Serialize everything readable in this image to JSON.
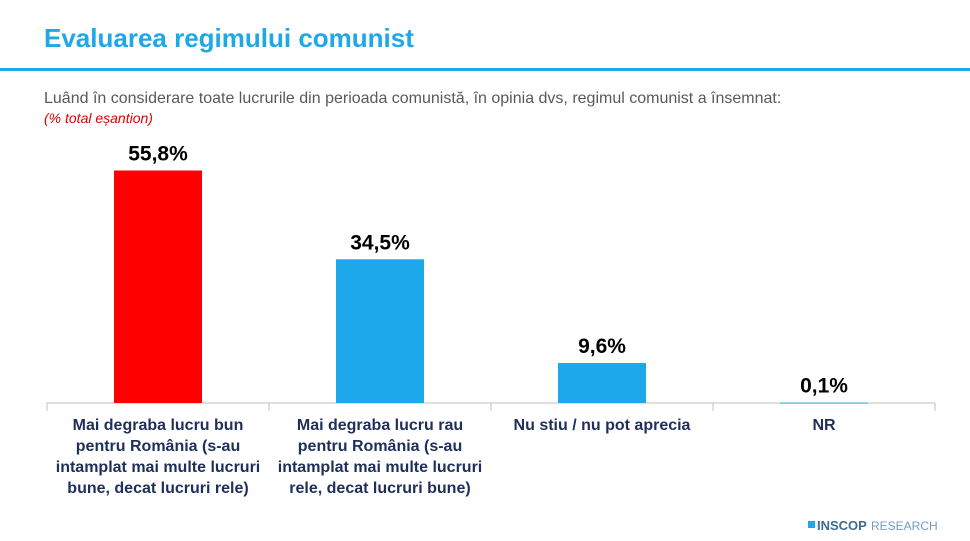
{
  "chart_data": {
    "type": "bar",
    "title": "Evaluarea regimului comunist",
    "subtitle": "Luând în considerare toate lucrurile din perioada comunistă, în opinia dvs, regimul comunist a însemnat:",
    "note": "(% total eșantion)",
    "categories": [
      "Mai degraba lucru bun pentru România (s-au intamplat mai multe lucruri bune, decat lucruri rele)",
      "Mai degraba lucru rau pentru România (s-au intamplat mai multe lucruri rele, decat lucruri bune)",
      "Nu stiu / nu pot aprecia",
      "NR"
    ],
    "values": [
      55.8,
      34.5,
      9.6,
      0.1
    ],
    "value_labels": [
      "55,8%",
      "34,5%",
      "9,6%",
      "0,1%"
    ],
    "colors": [
      "#ff0000",
      "#1ea8ec",
      "#1ea8ec",
      "#1ea8ec"
    ],
    "ylim": [
      0,
      60
    ],
    "logo": {
      "brand": "INSCOP",
      "suffix": "RESEARCH"
    }
  }
}
